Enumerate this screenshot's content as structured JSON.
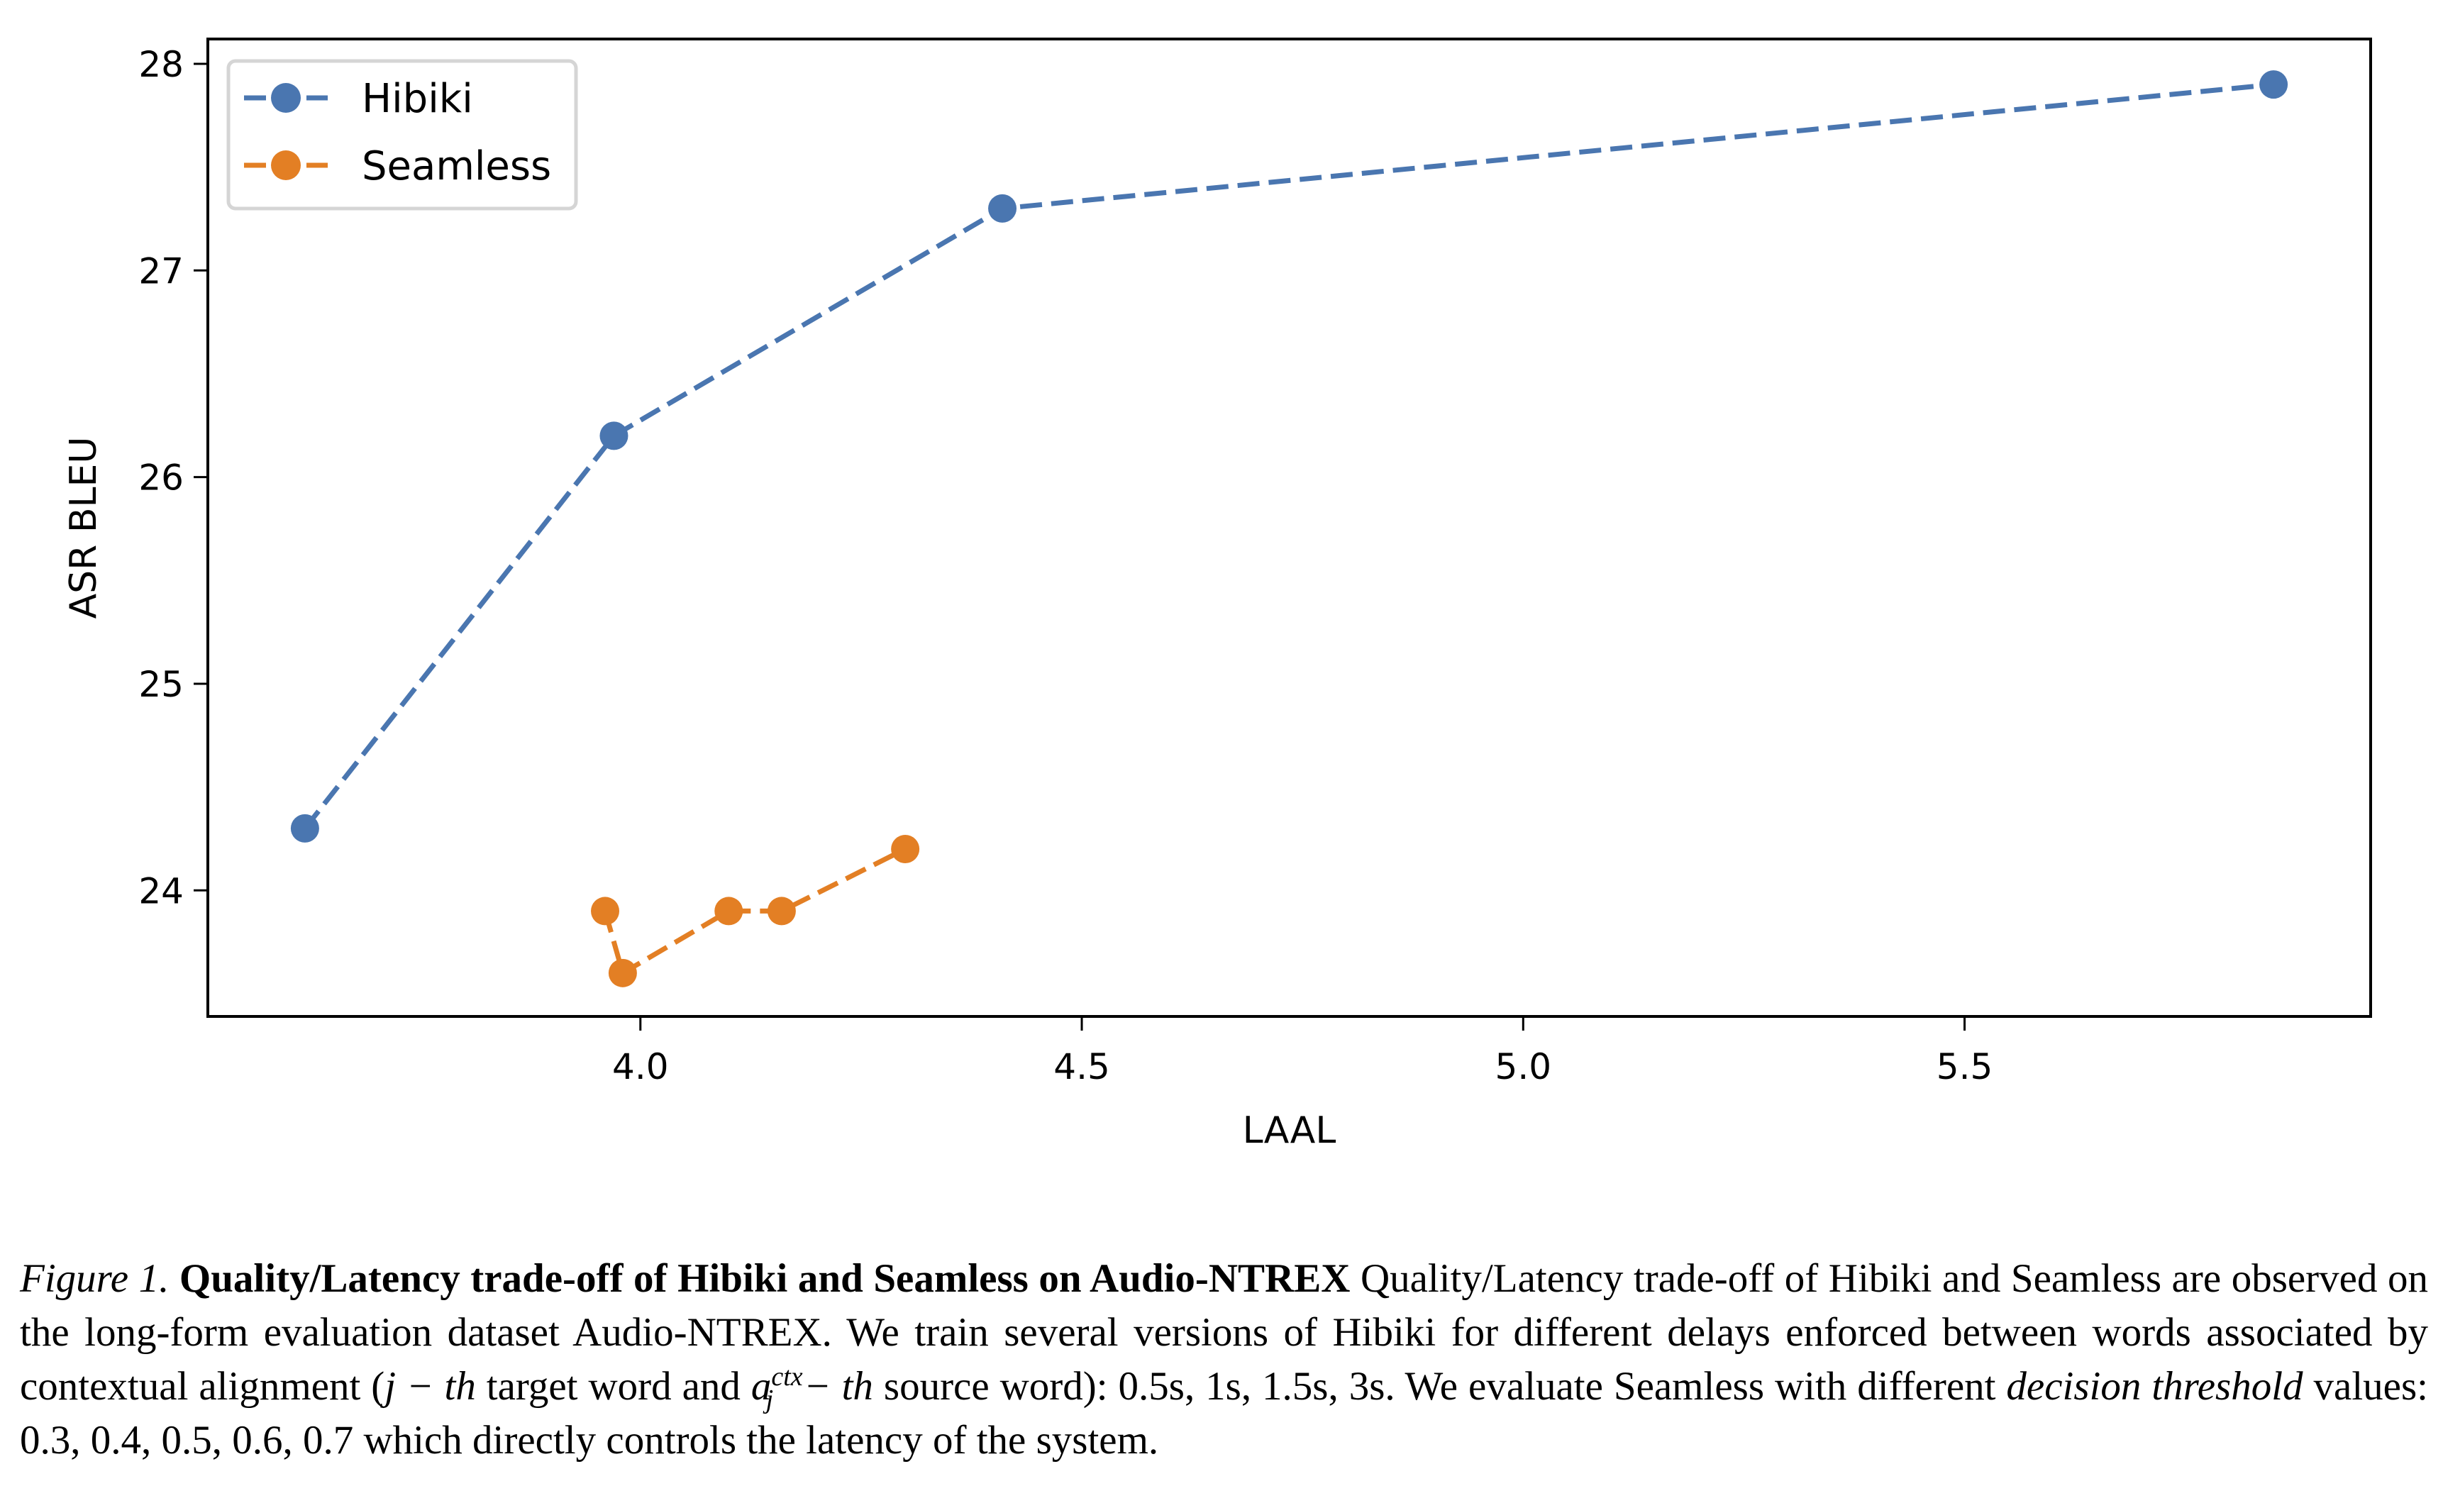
{
  "chart_data": {
    "type": "line",
    "title": "",
    "xlabel": "LAAL",
    "ylabel": "ASR BLEU",
    "xlim": [
      3.51,
      5.96
    ],
    "ylim": [
      23.39,
      28.12
    ],
    "xticks": [
      4.0,
      4.5,
      5.0,
      5.5
    ],
    "xtick_labels": [
      "4.0",
      "4.5",
      "5.0",
      "5.5"
    ],
    "yticks": [
      24,
      25,
      26,
      27,
      28
    ],
    "ytick_labels": [
      "24",
      "25",
      "26",
      "27",
      "28"
    ],
    "grid": false,
    "legend_position": "top-left",
    "series": [
      {
        "name": "Hibiki",
        "color": "#4a76b0",
        "line_style": "dashed",
        "marker": "circle",
        "x": [
          3.62,
          3.97,
          4.41,
          5.85
        ],
        "y": [
          24.3,
          26.2,
          27.3,
          27.9
        ]
      },
      {
        "name": "Seamless",
        "color": "#e37f24",
        "line_style": "dashed",
        "marker": "circle",
        "x": [
          3.96,
          3.98,
          4.1,
          4.16,
          4.3
        ],
        "y": [
          23.9,
          23.6,
          23.9,
          23.9,
          24.2
        ]
      }
    ]
  },
  "caption": {
    "figure_number": "Figure 1.",
    "bold_title": "Quality/Latency trade-off of Hibiki and Seamless on Audio-NTREX",
    "text_1": " Quality/Latency trade-off of Hibiki and Seamless are observed on the long-form evaluation dataset Audio-NTREX. We train several versions of Hibiki for different delays enforced between words associated by contextual alignment (",
    "math_1": "j − th",
    "text_2": " target word and ",
    "math_2_base": "a",
    "math_2_sup": "ctx",
    "math_2_sub": "j",
    "math_3": " − th",
    "text_3": " source word): 0.5s, 1s, 1.5s, 3s. We evaluate Seamless with different ",
    "italic_term": "decision threshold",
    "text_4": " values: 0.3, 0.4, 0.5, 0.6, 0.7 which directly controls the latency of the system."
  }
}
